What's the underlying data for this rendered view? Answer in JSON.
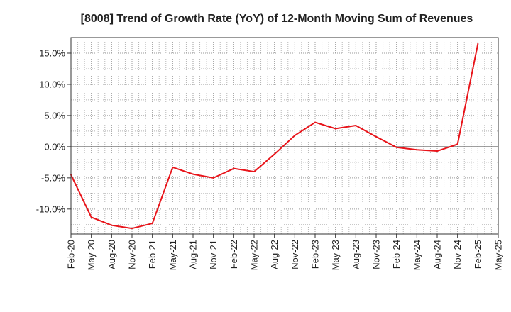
{
  "chart_data": {
    "type": "line",
    "title": "[8008]  Trend of Growth Rate (YoY) of 12-Month Moving Sum of Revenues",
    "xlabel": "",
    "ylabel": "",
    "x": [
      "Feb-20",
      "May-20",
      "Aug-20",
      "Nov-20",
      "Feb-21",
      "May-21",
      "Aug-21",
      "Nov-21",
      "Feb-22",
      "May-22",
      "Aug-22",
      "Nov-22",
      "Feb-23",
      "May-23",
      "Aug-23",
      "Nov-23",
      "Feb-24",
      "May-24",
      "Aug-24",
      "Nov-24",
      "Feb-25",
      "May-25"
    ],
    "x_tick_labels": [
      "Feb-20",
      "May-20",
      "Aug-20",
      "Nov-20",
      "Feb-21",
      "May-21",
      "Aug-21",
      "Nov-21",
      "Feb-22",
      "May-22",
      "Aug-22",
      "Nov-22",
      "Feb-23",
      "May-23",
      "Aug-23",
      "Nov-23",
      "Feb-24",
      "May-24",
      "Aug-24",
      "Nov-24",
      "Feb-25",
      "May-25"
    ],
    "series": [
      {
        "color": "#e8141a",
        "values": [
          -4.5,
          -11.3,
          -12.6,
          -13.1,
          -12.3,
          -3.3,
          -4.4,
          -5.0,
          -3.5,
          -4.0,
          -1.2,
          1.8,
          3.9,
          2.9,
          3.4,
          1.6,
          -0.1,
          -0.5,
          -0.7,
          0.4,
          16.5,
          null
        ]
      }
    ],
    "ylim": [
      -14.0,
      17.5
    ],
    "y_ticks": [
      15,
      10,
      5,
      0,
      -5,
      -10
    ],
    "y_tick_labels": [
      "15.0%",
      "10.0%",
      "5.0%",
      "0.0%",
      "-5.0%",
      "-10.0%"
    ],
    "grid": true,
    "zero_line": true,
    "legend": "none"
  }
}
